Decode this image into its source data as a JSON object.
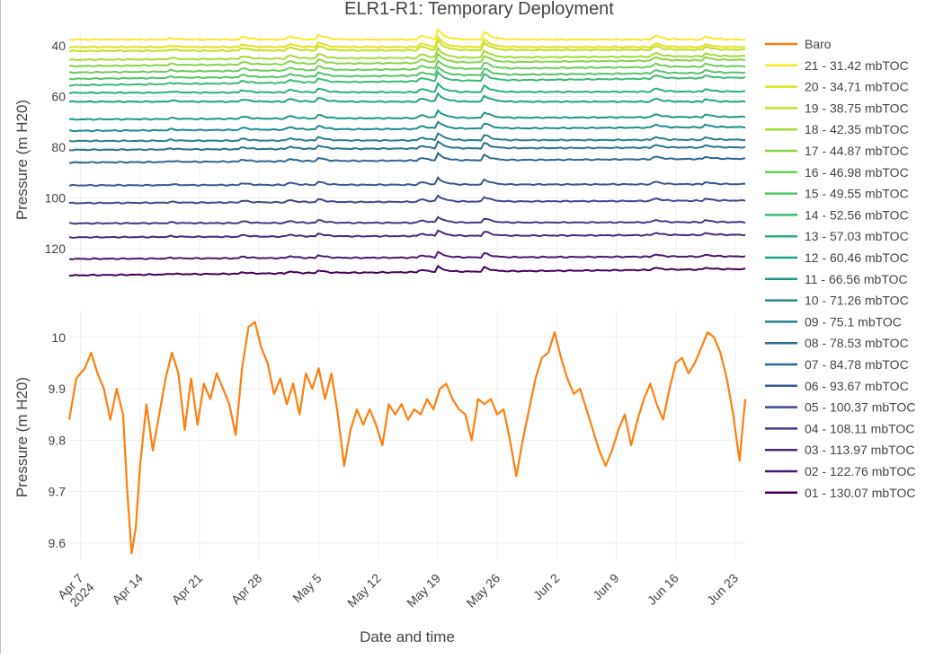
{
  "chart_data": {
    "title": "ELR1-R1: Temporary Deployment",
    "xlabel": "Date and time",
    "x_ticks": [
      {
        "date": "2024-04-07",
        "label": "Apr 7",
        "label2": "2024"
      },
      {
        "date": "2024-04-14",
        "label": "Apr 14"
      },
      {
        "date": "2024-04-21",
        "label": "Apr 21"
      },
      {
        "date": "2024-04-28",
        "label": "Apr 28"
      },
      {
        "date": "2024-05-05",
        "label": "May 5"
      },
      {
        "date": "2024-05-12",
        "label": "May 12"
      },
      {
        "date": "2024-05-19",
        "label": "May 19"
      },
      {
        "date": "2024-05-26",
        "label": "May 26"
      },
      {
        "date": "2024-06-02",
        "label": "Jun 2"
      },
      {
        "date": "2024-06-09",
        "label": "Jun 9"
      },
      {
        "date": "2024-06-16",
        "label": "Jun 16"
      },
      {
        "date": "2024-06-23",
        "label": "Jun 23"
      }
    ],
    "xlim": [
      "2024-04-05T16:00",
      "2024-06-24T04:00"
    ],
    "legend_position": "right",
    "grid": true,
    "panels": [
      {
        "type": "line",
        "ylabel": "Pressure (m H20)",
        "y_reversed": true,
        "ylim": [
          132,
          35
        ],
        "y_ticks": [
          40,
          60,
          80,
          100,
          120
        ],
        "series_names": [
          "21 - 31.42 mbTOC",
          "20 - 34.71 mbTOC",
          "19 - 38.75 mbTOC",
          "18 - 42.35 mbTOC",
          "17 - 44.87 mbTOC",
          "16 - 46.98 mbTOC",
          "15 - 49.55 mbTOC",
          "14 - 52.56 mbTOC",
          "13 - 57.03 mbTOC",
          "12 - 60.46 mbTOC",
          "11 - 66.56 mbTOC",
          "10 - 71.26 mbTOC",
          "09 - 75.1 mbTOC",
          "08 - 78.53 mbTOC",
          "07 - 84.78 mbTOC",
          "06 - 93.67 mbTOC",
          "05 - 100.37 mbTOC",
          "04 - 108.11 mbTOC",
          "03 - 113.97 mbTOC",
          "02 - 122.76 mbTOC",
          "01 - 130.07 mbTOC"
        ],
        "series_colors": [
          "#fde725",
          "#e2e418",
          "#c2df23",
          "#a5db36",
          "#86d549",
          "#6ccd5a",
          "#52c569",
          "#3bbb75",
          "#2ab07f",
          "#20a486",
          "#1f988b",
          "#238a8d",
          "#277f8e",
          "#2c728e",
          "#31668e",
          "#375a8c",
          "#3e4989",
          "#443a83",
          "#472a7a",
          "#481a6c",
          "#440154"
        ],
        "series_start_values": [
          37.5,
          40.5,
          42,
          45.5,
          48,
          50.5,
          53,
          55.5,
          58.5,
          62,
          69,
          73.5,
          77.5,
          81,
          86,
          95,
          102,
          110,
          115.5,
          124,
          130.5
        ],
        "series_end_values": [
          37.5,
          40.5,
          41.5,
          44,
          45.5,
          48,
          50.5,
          52.5,
          58,
          62,
          68,
          72,
          77,
          80,
          84.5,
          94.5,
          101,
          109.5,
          114.5,
          123,
          128
        ]
      },
      {
        "type": "line",
        "ylabel": "Pressure (m H20)",
        "ylim": [
          9.565,
          10.052
        ],
        "y_ticks": [
          9.6,
          9.7,
          9.8,
          9.9,
          10
        ],
        "y_tick_labels": [
          "9.6",
          "9.7",
          "9.8",
          "9.9",
          "10"
        ],
        "series": [
          {
            "name": "Baro",
            "color": "#ff7f0e",
            "points": [
              [
                "2024-04-05T16:00",
                9.84
              ],
              [
                "2024-04-06T12:00",
                9.92
              ],
              [
                "2024-04-07T12:00",
                9.94
              ],
              [
                "2024-04-08T06:00",
                9.97
              ],
              [
                "2024-04-09T00:00",
                9.93
              ],
              [
                "2024-04-09T18:00",
                9.9
              ],
              [
                "2024-04-10T12:00",
                9.84
              ],
              [
                "2024-04-11T06:00",
                9.9
              ],
              [
                "2024-04-12T00:00",
                9.85
              ],
              [
                "2024-04-12T12:00",
                9.7
              ],
              [
                "2024-04-13T00:00",
                9.58
              ],
              [
                "2024-04-13T12:00",
                9.63
              ],
              [
                "2024-04-14T00:00",
                9.75
              ],
              [
                "2024-04-14T18:00",
                9.87
              ],
              [
                "2024-04-15T12:00",
                9.78
              ],
              [
                "2024-04-16T06:00",
                9.85
              ],
              [
                "2024-04-17T00:00",
                9.92
              ],
              [
                "2024-04-17T18:00",
                9.97
              ],
              [
                "2024-04-18T12:00",
                9.93
              ],
              [
                "2024-04-19T06:00",
                9.82
              ],
              [
                "2024-04-20T00:00",
                9.92
              ],
              [
                "2024-04-20T18:00",
                9.83
              ],
              [
                "2024-04-21T12:00",
                9.91
              ],
              [
                "2024-04-22T06:00",
                9.88
              ],
              [
                "2024-04-23T00:00",
                9.93
              ],
              [
                "2024-04-23T18:00",
                9.9
              ],
              [
                "2024-04-24T12:00",
                9.87
              ],
              [
                "2024-04-25T06:00",
                9.81
              ],
              [
                "2024-04-26T00:00",
                9.94
              ],
              [
                "2024-04-26T18:00",
                10.02
              ],
              [
                "2024-04-27T12:00",
                10.03
              ],
              [
                "2024-04-28T06:00",
                9.98
              ],
              [
                "2024-04-29T00:00",
                9.95
              ],
              [
                "2024-04-29T18:00",
                9.89
              ],
              [
                "2024-04-30T12:00",
                9.92
              ],
              [
                "2024-05-01T06:00",
                9.87
              ],
              [
                "2024-05-02T00:00",
                9.91
              ],
              [
                "2024-05-02T18:00",
                9.85
              ],
              [
                "2024-05-03T12:00",
                9.93
              ],
              [
                "2024-05-04T06:00",
                9.9
              ],
              [
                "2024-05-05T00:00",
                9.94
              ],
              [
                "2024-05-05T18:00",
                9.88
              ],
              [
                "2024-05-06T12:00",
                9.93
              ],
              [
                "2024-05-07T06:00",
                9.85
              ],
              [
                "2024-05-08T00:00",
                9.75
              ],
              [
                "2024-05-08T18:00",
                9.82
              ],
              [
                "2024-05-09T12:00",
                9.86
              ],
              [
                "2024-05-10T06:00",
                9.83
              ],
              [
                "2024-05-11T00:00",
                9.86
              ],
              [
                "2024-05-11T18:00",
                9.83
              ],
              [
                "2024-05-12T12:00",
                9.79
              ],
              [
                "2024-05-13T06:00",
                9.87
              ],
              [
                "2024-05-14T00:00",
                9.85
              ],
              [
                "2024-05-14T18:00",
                9.87
              ],
              [
                "2024-05-15T12:00",
                9.84
              ],
              [
                "2024-05-16T06:00",
                9.86
              ],
              [
                "2024-05-17T00:00",
                9.85
              ],
              [
                "2024-05-17T18:00",
                9.88
              ],
              [
                "2024-05-18T12:00",
                9.86
              ],
              [
                "2024-05-19T06:00",
                9.9
              ],
              [
                "2024-05-20T00:00",
                9.91
              ],
              [
                "2024-05-20T18:00",
                9.88
              ],
              [
                "2024-05-21T12:00",
                9.86
              ],
              [
                "2024-05-22T06:00",
                9.85
              ],
              [
                "2024-05-23T00:00",
                9.8
              ],
              [
                "2024-05-23T18:00",
                9.88
              ],
              [
                "2024-05-24T12:00",
                9.87
              ],
              [
                "2024-05-25T06:00",
                9.88
              ],
              [
                "2024-05-26T00:00",
                9.85
              ],
              [
                "2024-05-26T18:00",
                9.86
              ],
              [
                "2024-05-27T12:00",
                9.8
              ],
              [
                "2024-05-28T06:00",
                9.73
              ],
              [
                "2024-05-29T00:00",
                9.8
              ],
              [
                "2024-05-29T18:00",
                9.86
              ],
              [
                "2024-05-30T12:00",
                9.92
              ],
              [
                "2024-05-31T06:00",
                9.96
              ],
              [
                "2024-06-01T00:00",
                9.97
              ],
              [
                "2024-06-01T18:00",
                10.01
              ],
              [
                "2024-06-02T12:00",
                9.96
              ],
              [
                "2024-06-03T06:00",
                9.92
              ],
              [
                "2024-06-04T00:00",
                9.89
              ],
              [
                "2024-06-04T18:00",
                9.9
              ],
              [
                "2024-06-05T12:00",
                9.86
              ],
              [
                "2024-06-06T06:00",
                9.82
              ],
              [
                "2024-06-07T00:00",
                9.78
              ],
              [
                "2024-06-07T18:00",
                9.75
              ],
              [
                "2024-06-08T12:00",
                9.78
              ],
              [
                "2024-06-09T06:00",
                9.82
              ],
              [
                "2024-06-10T00:00",
                9.85
              ],
              [
                "2024-06-10T18:00",
                9.79
              ],
              [
                "2024-06-11T12:00",
                9.84
              ],
              [
                "2024-06-12T06:00",
                9.88
              ],
              [
                "2024-06-13T00:00",
                9.91
              ],
              [
                "2024-06-13T18:00",
                9.87
              ],
              [
                "2024-06-14T12:00",
                9.84
              ],
              [
                "2024-06-15T06:00",
                9.9
              ],
              [
                "2024-06-16T00:00",
                9.95
              ],
              [
                "2024-06-16T18:00",
                9.96
              ],
              [
                "2024-06-17T12:00",
                9.93
              ],
              [
                "2024-06-18T06:00",
                9.95
              ],
              [
                "2024-06-19T00:00",
                9.98
              ],
              [
                "2024-06-19T18:00",
                10.01
              ],
              [
                "2024-06-20T12:00",
                10.0
              ],
              [
                "2024-06-21T06:00",
                9.97
              ],
              [
                "2024-06-22T00:00",
                9.92
              ],
              [
                "2024-06-22T18:00",
                9.85
              ],
              [
                "2024-06-23T12:00",
                9.76
              ],
              [
                "2024-06-24T04:00",
                9.88
              ]
            ]
          }
        ]
      }
    ]
  }
}
